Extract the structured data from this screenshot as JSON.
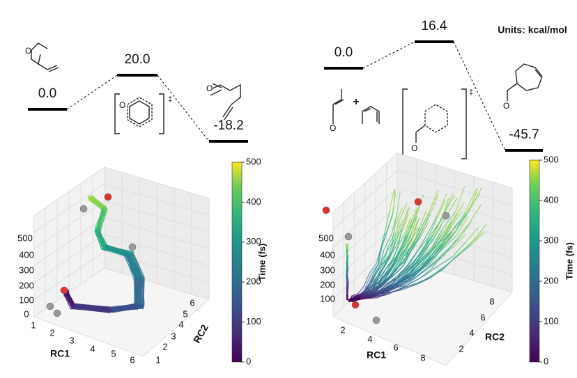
{
  "units": "Units: kcal/mol",
  "left_profile": {
    "levels": [
      "0.0",
      "20.0",
      "-18.2"
    ],
    "ts_mark": "‡"
  },
  "right_profile": {
    "levels": [
      "0.0",
      "16.4",
      "-45.7"
    ],
    "plus": "+",
    "ts_mark": "‡"
  },
  "left_plot": {
    "z_ticks": [
      "0",
      "100",
      "200",
      "300",
      "400",
      "500"
    ],
    "x_label": "RC1",
    "x_ticks": [
      "1",
      "2",
      "3",
      "4",
      "5",
      "6"
    ],
    "y_label": "RC2",
    "y_ticks": [
      "1",
      "2",
      "3",
      "4",
      "5",
      "6"
    ],
    "colorbar": {
      "label": "Time (fs)",
      "ticks": [
        "0",
        "100",
        "200",
        "300",
        "400",
        "500"
      ]
    }
  },
  "right_plot": {
    "z_ticks": [
      "100",
      "200",
      "300",
      "400",
      "500"
    ],
    "x_label": "RC1",
    "x_ticks": [
      "2",
      "4",
      "6",
      "8"
    ],
    "y_label": "RC2",
    "y_ticks": [
      "2",
      "4",
      "6",
      "8"
    ],
    "colorbar": {
      "label": "Time (fs)",
      "ticks": [
        "0",
        "100",
        "200",
        "300",
        "400",
        "500"
      ]
    }
  }
}
